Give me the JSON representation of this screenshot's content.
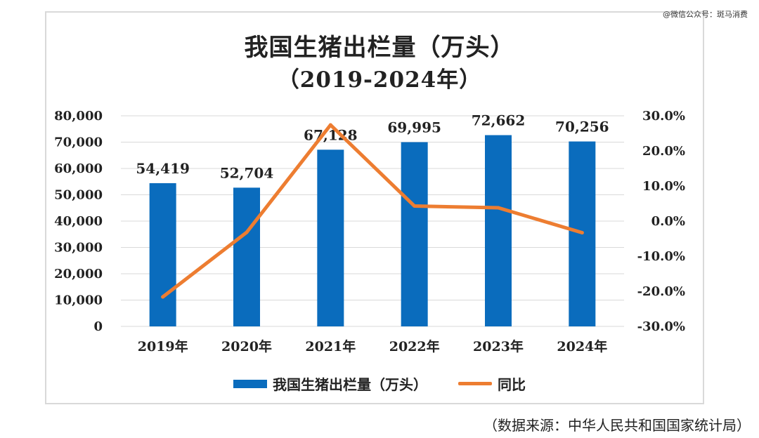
{
  "watermark": "@微信公众号：斑马消费",
  "title": "我国生猪出栏量（万头）",
  "subtitle": "（2019-2024年）",
  "source": "（数据来源：中华人民共和国国家统计局）",
  "colors": {
    "bar": "#0a6cbd",
    "line": "#ed7d31",
    "grid": "#d9d9d9",
    "text": "#222222"
  },
  "chart_data": {
    "type": "bar",
    "categories": [
      "2019年",
      "2020年",
      "2021年",
      "2022年",
      "2023年",
      "2024年"
    ],
    "series": [
      {
        "name": "我国生猪出栏量（万头）",
        "type": "bar",
        "axis": "left",
        "values": [
          54419,
          52704,
          67128,
          69995,
          72662,
          70256
        ],
        "labels": [
          "54,419",
          "52,704",
          "67,128",
          "69,995",
          "72,662",
          "70,256"
        ]
      },
      {
        "name": "同比",
        "type": "line",
        "axis": "right",
        "values": [
          -21.6,
          -3.2,
          27.4,
          4.3,
          3.8,
          -3.3
        ]
      }
    ],
    "y_left": {
      "ylim": [
        0,
        80000
      ],
      "ticks": [
        0,
        10000,
        20000,
        30000,
        40000,
        50000,
        60000,
        70000,
        80000
      ],
      "tick_labels": [
        "0",
        "10,000",
        "20,000",
        "30,000",
        "40,000",
        "50,000",
        "60,000",
        "70,000",
        "80,000"
      ]
    },
    "y_right": {
      "ylim": [
        -30,
        30
      ],
      "ticks": [
        -30,
        -20,
        -10,
        0,
        10,
        20,
        30
      ],
      "tick_labels": [
        "-30.0%",
        "-20.0%",
        "-10.0%",
        "0.0%",
        "10.0%",
        "20.0%",
        "30.0%"
      ]
    },
    "grid": true,
    "legend": "bottom"
  }
}
